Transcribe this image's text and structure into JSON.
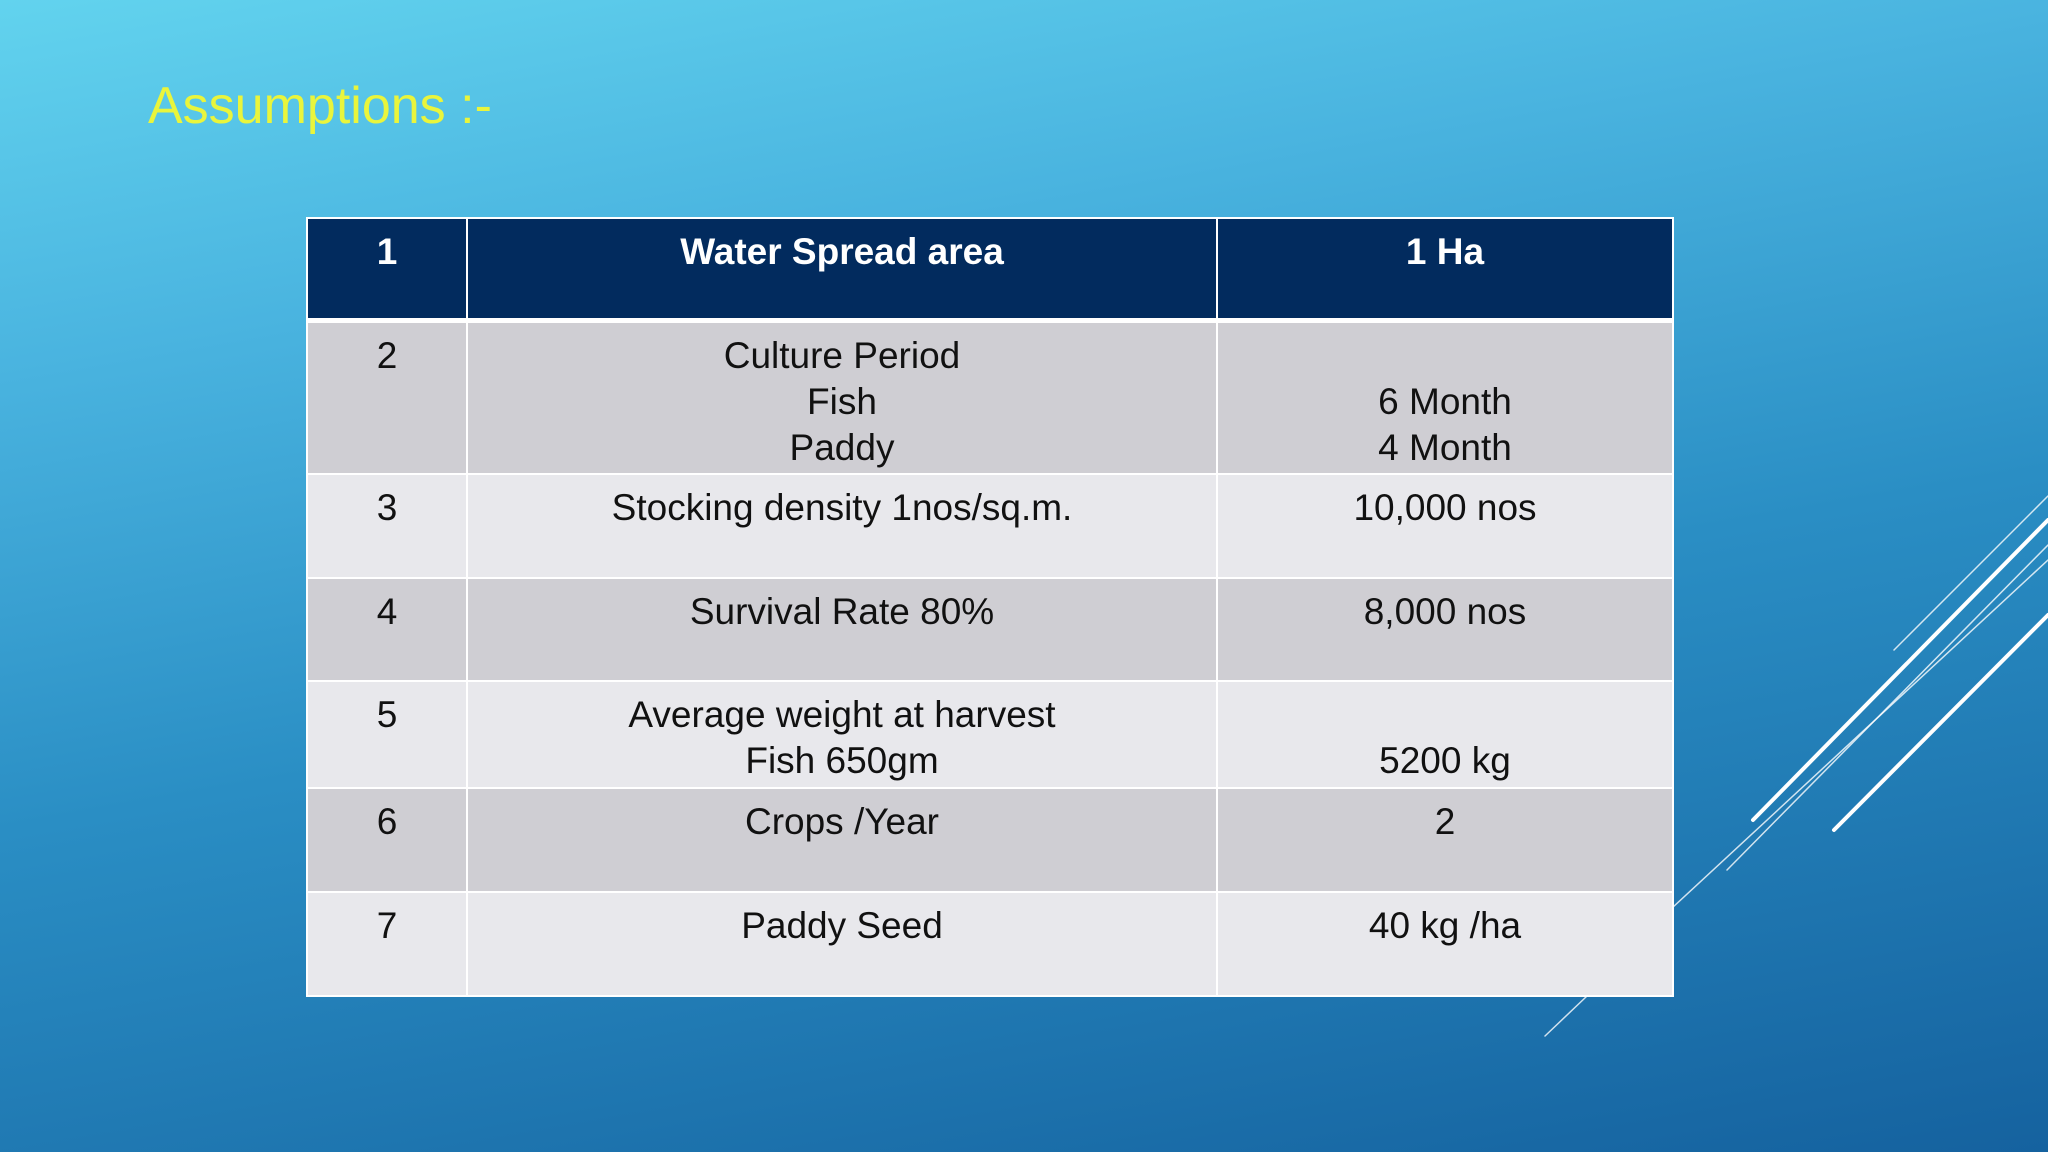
{
  "title": "Assumptions :-",
  "table": {
    "header": [
      "1",
      "Water Spread area",
      "1 Ha"
    ],
    "rows": [
      [
        "2",
        [
          "Culture Period",
          "Fish",
          "Paddy"
        ],
        [
          "6 Month",
          "4 Month"
        ]
      ],
      [
        "3",
        [
          "Stocking density 1nos/sq.m."
        ],
        [
          "10,000 nos"
        ]
      ],
      [
        "4",
        [
          "Survival Rate 80%"
        ],
        [
          "8,000 nos"
        ]
      ],
      [
        "5",
        [
          "Average weight at harvest",
          "Fish 650gm"
        ],
        [
          "5200 kg"
        ]
      ],
      [
        "6",
        [
          "Crops /Year"
        ],
        [
          "2"
        ]
      ],
      [
        "7",
        [
          "Paddy Seed"
        ],
        [
          "40 kg /ha"
        ]
      ]
    ]
  }
}
